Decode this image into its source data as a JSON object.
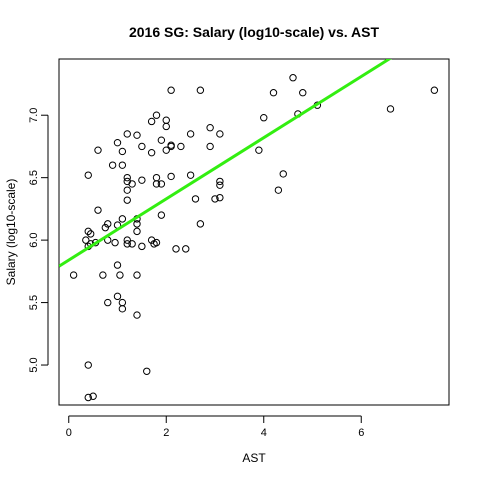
{
  "chart_data": {
    "type": "scatter",
    "title": "2016 SG: Salary (log10-scale) vs. AST",
    "xlabel": "AST",
    "ylabel": "Salary (log10-scale)",
    "xlim": [
      -0.2,
      7.8
    ],
    "ylim": [
      4.68,
      7.45
    ],
    "x_ticks": [
      0,
      2,
      4,
      6
    ],
    "y_ticks": [
      5.0,
      5.5,
      6.0,
      6.5,
      7.0
    ],
    "x_tick_labels": [
      "0",
      "2",
      "4",
      "6"
    ],
    "y_tick_labels": [
      "5.0",
      "5.5",
      "6.0",
      "6.5",
      "7.0"
    ],
    "point_color": "#000000",
    "fit_line": {
      "intercept": 5.84,
      "slope": 0.245,
      "color": "#33ee11"
    },
    "points": [
      {
        "x": 0.1,
        "y": 5.72
      },
      {
        "x": 0.35,
        "y": 6.0
      },
      {
        "x": 0.4,
        "y": 6.52
      },
      {
        "x": 0.4,
        "y": 6.07
      },
      {
        "x": 0.4,
        "y": 5.95
      },
      {
        "x": 0.4,
        "y": 5.0
      },
      {
        "x": 0.4,
        "y": 4.74
      },
      {
        "x": 0.45,
        "y": 6.05
      },
      {
        "x": 0.45,
        "y": 5.97
      },
      {
        "x": 0.5,
        "y": 4.75
      },
      {
        "x": 0.55,
        "y": 5.98
      },
      {
        "x": 0.6,
        "y": 6.24
      },
      {
        "x": 0.6,
        "y": 6.72
      },
      {
        "x": 0.7,
        "y": 5.72
      },
      {
        "x": 0.75,
        "y": 6.1
      },
      {
        "x": 0.8,
        "y": 6.13
      },
      {
        "x": 0.8,
        "y": 6.0
      },
      {
        "x": 0.8,
        "y": 5.5
      },
      {
        "x": 0.9,
        "y": 6.6
      },
      {
        "x": 0.95,
        "y": 5.98
      },
      {
        "x": 1.0,
        "y": 6.78
      },
      {
        "x": 1.0,
        "y": 6.12
      },
      {
        "x": 1.0,
        "y": 5.8
      },
      {
        "x": 1.0,
        "y": 5.55
      },
      {
        "x": 1.05,
        "y": 5.72
      },
      {
        "x": 1.1,
        "y": 6.17
      },
      {
        "x": 1.1,
        "y": 6.71
      },
      {
        "x": 1.1,
        "y": 6.6
      },
      {
        "x": 1.1,
        "y": 5.5
      },
      {
        "x": 1.1,
        "y": 5.45
      },
      {
        "x": 1.2,
        "y": 6.85
      },
      {
        "x": 1.2,
        "y": 6.5
      },
      {
        "x": 1.2,
        "y": 6.47
      },
      {
        "x": 1.2,
        "y": 6.4
      },
      {
        "x": 1.2,
        "y": 6.32
      },
      {
        "x": 1.2,
        "y": 6.0
      },
      {
        "x": 1.2,
        "y": 5.97
      },
      {
        "x": 1.3,
        "y": 6.45
      },
      {
        "x": 1.3,
        "y": 5.97
      },
      {
        "x": 1.4,
        "y": 6.84
      },
      {
        "x": 1.4,
        "y": 6.17
      },
      {
        "x": 1.4,
        "y": 6.13
      },
      {
        "x": 1.4,
        "y": 6.07
      },
      {
        "x": 1.4,
        "y": 5.72
      },
      {
        "x": 1.4,
        "y": 5.4
      },
      {
        "x": 1.5,
        "y": 6.48
      },
      {
        "x": 1.5,
        "y": 6.75
      },
      {
        "x": 1.5,
        "y": 5.95
      },
      {
        "x": 1.6,
        "y": 4.95
      },
      {
        "x": 1.7,
        "y": 6.95
      },
      {
        "x": 1.7,
        "y": 6.7
      },
      {
        "x": 1.7,
        "y": 6.0
      },
      {
        "x": 1.75,
        "y": 5.97
      },
      {
        "x": 1.8,
        "y": 7.0
      },
      {
        "x": 1.8,
        "y": 6.5
      },
      {
        "x": 1.8,
        "y": 6.45
      },
      {
        "x": 1.8,
        "y": 5.98
      },
      {
        "x": 1.9,
        "y": 6.8
      },
      {
        "x": 1.9,
        "y": 6.45
      },
      {
        "x": 1.9,
        "y": 6.2
      },
      {
        "x": 2.0,
        "y": 6.96
      },
      {
        "x": 2.0,
        "y": 6.91
      },
      {
        "x": 2.0,
        "y": 6.72
      },
      {
        "x": 2.1,
        "y": 7.2
      },
      {
        "x": 2.1,
        "y": 6.76
      },
      {
        "x": 2.1,
        "y": 6.75
      },
      {
        "x": 2.1,
        "y": 6.51
      },
      {
        "x": 2.2,
        "y": 5.93
      },
      {
        "x": 2.3,
        "y": 6.75
      },
      {
        "x": 2.4,
        "y": 5.93
      },
      {
        "x": 2.5,
        "y": 6.85
      },
      {
        "x": 2.5,
        "y": 6.52
      },
      {
        "x": 2.6,
        "y": 6.33
      },
      {
        "x": 2.7,
        "y": 7.2
      },
      {
        "x": 2.7,
        "y": 6.13
      },
      {
        "x": 2.9,
        "y": 6.9
      },
      {
        "x": 2.9,
        "y": 6.75
      },
      {
        "x": 3.0,
        "y": 6.33
      },
      {
        "x": 3.1,
        "y": 6.85
      },
      {
        "x": 3.1,
        "y": 6.47
      },
      {
        "x": 3.1,
        "y": 6.44
      },
      {
        "x": 3.1,
        "y": 6.34
      },
      {
        "x": 3.9,
        "y": 6.72
      },
      {
        "x": 4.0,
        "y": 6.98
      },
      {
        "x": 4.2,
        "y": 7.18
      },
      {
        "x": 4.3,
        "y": 6.4
      },
      {
        "x": 4.4,
        "y": 6.53
      },
      {
        "x": 4.6,
        "y": 7.3
      },
      {
        "x": 4.7,
        "y": 7.01
      },
      {
        "x": 4.8,
        "y": 7.18
      },
      {
        "x": 5.1,
        "y": 7.08
      },
      {
        "x": 6.6,
        "y": 7.05
      },
      {
        "x": 7.5,
        "y": 7.2
      }
    ]
  }
}
